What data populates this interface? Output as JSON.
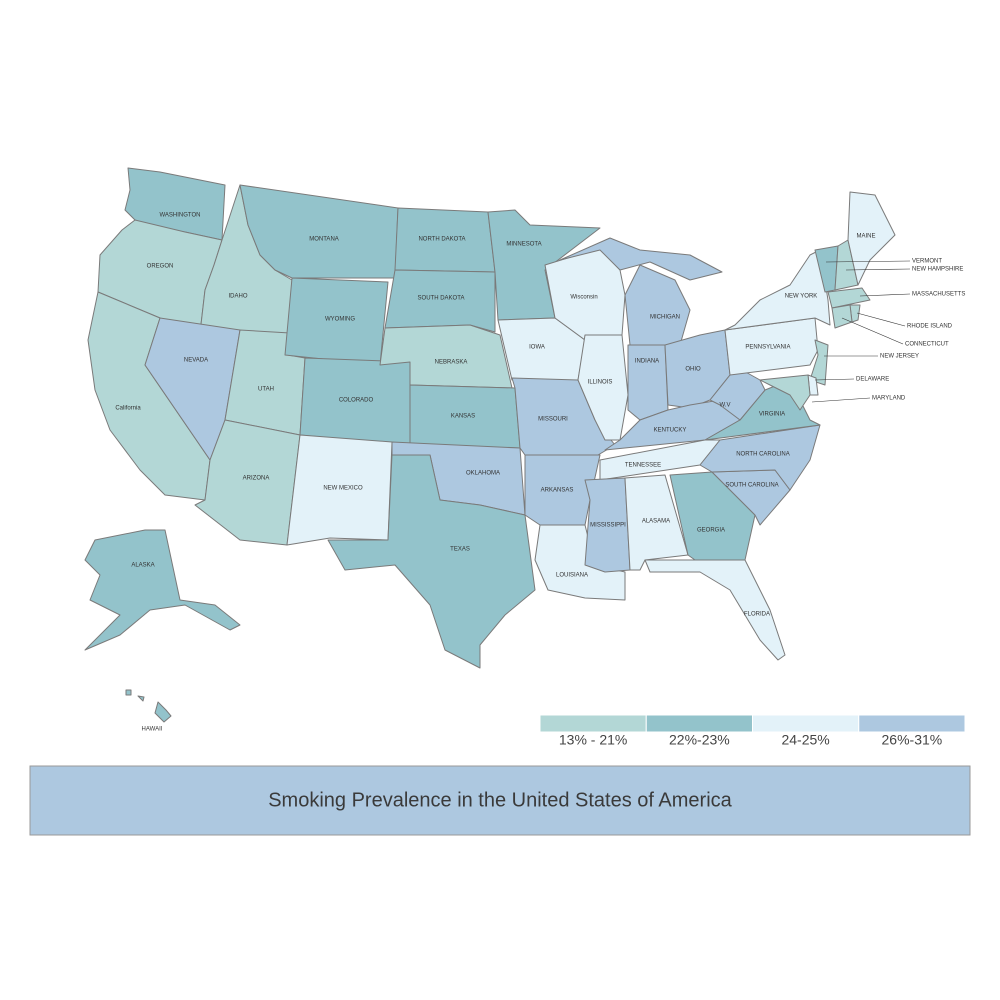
{
  "title": "Smoking Prevalence in the United States of America",
  "legend": [
    {
      "label": "13% - 21%",
      "color": "#b3d7d6"
    },
    {
      "label": "22%-23%",
      "color": "#93c3cb"
    },
    {
      "label": "24-25%",
      "color": "#e3f2f9"
    },
    {
      "label": "26%-31%",
      "color": "#adc8e0"
    }
  ],
  "states": [
    {
      "label": "WASHINGTON",
      "group": 1
    },
    {
      "label": "OREGON",
      "group": 0
    },
    {
      "label": "California",
      "group": 0
    },
    {
      "label": "IDAHO",
      "group": 0
    },
    {
      "label": "NEVADA",
      "group": 3
    },
    {
      "label": "UTAH",
      "group": 0
    },
    {
      "label": "ARIZONA",
      "group": 0
    },
    {
      "label": "MONTANA",
      "group": 1
    },
    {
      "label": "WYOMING",
      "group": 1
    },
    {
      "label": "COLORADO",
      "group": 1
    },
    {
      "label": "NEW MEXICO",
      "group": 2
    },
    {
      "label": "NORTH DAKOTA",
      "group": 1
    },
    {
      "label": "SOUTH DAKOTA",
      "group": 1
    },
    {
      "label": "NEBRASKA",
      "group": 0
    },
    {
      "label": "KANSAS",
      "group": 1
    },
    {
      "label": "OKLAHOMA",
      "group": 3
    },
    {
      "label": "TEXAS",
      "group": 1
    },
    {
      "label": "MINNESOTA",
      "group": 1
    },
    {
      "label": "IOWA",
      "group": 2
    },
    {
      "label": "MISSOURI",
      "group": 3
    },
    {
      "label": "ARKANSAS",
      "group": 3
    },
    {
      "label": "LOUISIANA",
      "group": 2
    },
    {
      "label": "Wisconsin",
      "group": 2
    },
    {
      "label": "ILLINOIS",
      "group": 2
    },
    {
      "label": "MICHIGAN",
      "group": 3
    },
    {
      "label": "INDIANA",
      "group": 3
    },
    {
      "label": "OHIO",
      "group": 3
    },
    {
      "label": "KENTUCKY",
      "group": 3
    },
    {
      "label": "TENNESSEE",
      "group": 2
    },
    {
      "label": "MISSISSIPPI",
      "group": 3
    },
    {
      "label": "ALASAMA",
      "group": 2
    },
    {
      "label": "GEORGIA",
      "group": 1
    },
    {
      "label": "FLORIDA",
      "group": 2
    },
    {
      "label": "SOUTH CAROLINA",
      "group": 3
    },
    {
      "label": "NORTH CAROLINA",
      "group": 3
    },
    {
      "label": "VIRGINIA",
      "group": 1
    },
    {
      "label": "W.V",
      "group": 3
    },
    {
      "label": "PENNSYLVANIA",
      "group": 2
    },
    {
      "label": "NEW YORK",
      "group": 2
    },
    {
      "label": "VERMONT",
      "group": 1
    },
    {
      "label": "NEW HAMPSHIRE",
      "group": 0
    },
    {
      "label": "MAINE",
      "group": 2
    },
    {
      "label": "MASSACHUSETTS",
      "group": 0
    },
    {
      "label": "RHODE ISLAND",
      "group": 0
    },
    {
      "label": "CONNECTICUT",
      "group": 0
    },
    {
      "label": "NEW JERSEY",
      "group": 0
    },
    {
      "label": "DELAWARE",
      "group": 2
    },
    {
      "label": "MARYLAND",
      "group": 0
    },
    {
      "label": "ALASKA",
      "group": 1
    },
    {
      "label": "HAWAII",
      "group": 1
    }
  ]
}
